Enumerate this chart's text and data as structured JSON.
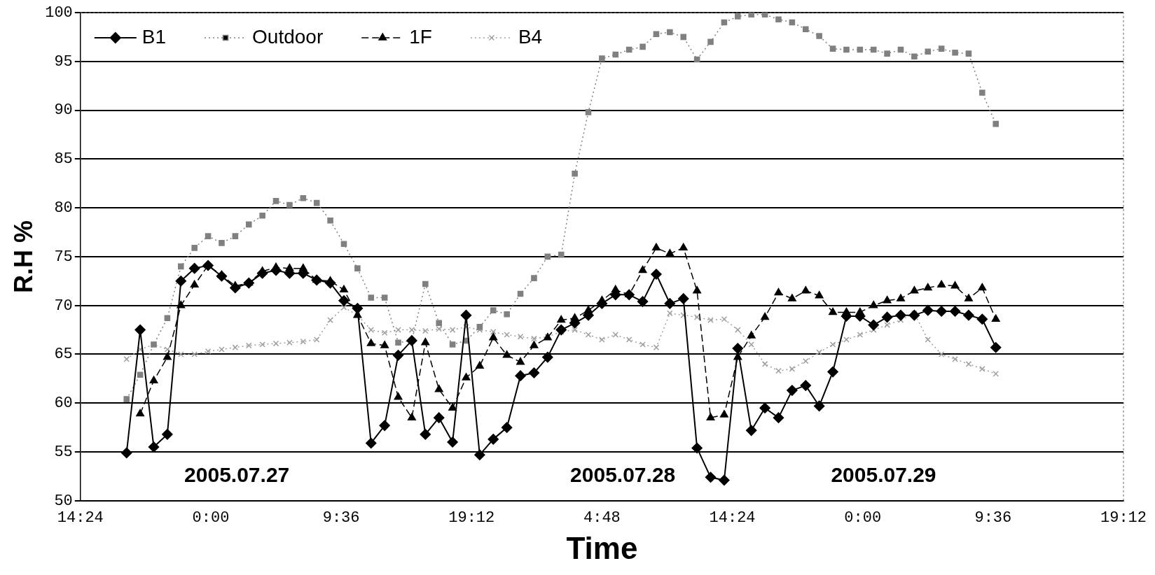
{
  "chart_data": {
    "type": "line",
    "xlabel": "Time",
    "ylabel": "R.H %",
    "x": [
      "2005-07-26T17:48",
      "2005-07-26T18:48",
      "2005-07-26T19:48",
      "2005-07-26T20:48",
      "2005-07-26T21:48",
      "2005-07-26T22:48",
      "2005-07-26T23:48",
      "2005-07-27T00:48",
      "2005-07-27T01:48",
      "2005-07-27T02:48",
      "2005-07-27T03:48",
      "2005-07-27T04:48",
      "2005-07-27T05:48",
      "2005-07-27T06:48",
      "2005-07-27T07:48",
      "2005-07-27T08:48",
      "2005-07-27T09:48",
      "2005-07-27T10:48",
      "2005-07-27T11:48",
      "2005-07-27T12:48",
      "2005-07-27T13:48",
      "2005-07-27T14:48",
      "2005-07-27T15:48",
      "2005-07-27T16:48",
      "2005-07-27T17:48",
      "2005-07-27T18:48",
      "2005-07-27T19:48",
      "2005-07-27T20:48",
      "2005-07-27T21:48",
      "2005-07-27T22:48",
      "2005-07-27T23:48",
      "2005-07-28T00:48",
      "2005-07-28T01:48",
      "2005-07-28T02:48",
      "2005-07-28T03:48",
      "2005-07-28T04:48",
      "2005-07-28T05:48",
      "2005-07-28T06:48",
      "2005-07-28T07:48",
      "2005-07-28T08:48",
      "2005-07-28T09:48",
      "2005-07-28T10:48",
      "2005-07-28T11:48",
      "2005-07-28T12:48",
      "2005-07-28T13:48",
      "2005-07-28T14:48",
      "2005-07-28T15:48",
      "2005-07-28T16:48",
      "2005-07-28T17:48",
      "2005-07-28T18:48",
      "2005-07-28T19:48",
      "2005-07-28T20:48",
      "2005-07-28T21:48",
      "2005-07-28T22:48",
      "2005-07-28T23:48",
      "2005-07-29T00:48",
      "2005-07-29T01:48",
      "2005-07-29T02:48",
      "2005-07-29T03:48",
      "2005-07-29T04:48",
      "2005-07-29T05:48",
      "2005-07-29T06:48",
      "2005-07-29T07:48",
      "2005-07-29T08:48",
      "2005-07-29T09:48"
    ],
    "series": [
      {
        "name": "B1",
        "color": "#000000",
        "marker": "diamond",
        "line_style": "solid",
        "values": [
          54.9,
          67.5,
          55.5,
          56.8,
          72.5,
          73.8,
          74.1,
          73,
          71.8,
          72.3,
          73.3,
          73.6,
          73.3,
          73.3,
          72.6,
          72.3,
          70.5,
          69.7,
          55.9,
          57.7,
          64.9,
          66.4,
          56.8,
          58.5,
          56,
          69,
          54.7,
          56.3,
          57.5,
          62.8,
          63.1,
          64.7,
          67.5,
          68.2,
          69,
          70.2,
          71.1,
          71.1,
          70.4,
          73.2,
          70.2,
          70.7,
          55.4,
          52.4,
          52.1,
          65.6,
          57.2,
          59.5,
          58.5,
          61.3,
          61.8,
          59.7,
          63.2,
          68.9,
          68.9,
          68,
          68.8,
          69,
          69,
          69.5,
          69.4,
          69.4,
          69,
          68.6,
          65.7
        ]
      },
      {
        "name": "Outdoor",
        "color": "#808080",
        "marker": "square",
        "line_style": "dotted",
        "values": [
          60.4,
          62.9,
          66,
          68.7,
          74,
          75.9,
          77.1,
          76.4,
          77.1,
          78.3,
          79.2,
          80.7,
          80.3,
          81,
          80.5,
          78.7,
          76.3,
          73.8,
          70.8,
          70.8,
          66.2,
          66.4,
          72.2,
          68.2,
          66,
          66.4,
          67.8,
          69.5,
          69.1,
          71.2,
          72.8,
          75,
          75.2,
          83.5,
          89.8,
          95.3,
          95.7,
          96.2,
          96.5,
          97.8,
          98,
          97.5,
          95.2,
          97,
          99,
          99.6,
          99.8,
          99.8,
          99.3,
          99,
          98.3,
          97.6,
          96.3,
          96.2,
          96.2,
          96.2,
          95.8,
          96.2,
          95.5,
          96,
          96.3,
          95.9,
          95.8,
          91.8,
          88.6
        ]
      },
      {
        "name": "1F",
        "color": "#000000",
        "marker": "triangle",
        "line_style": "dashed",
        "values": [
          null,
          58.9,
          62.3,
          64.7,
          70,
          72.1,
          74.1,
          73.1,
          72,
          72.3,
          73.5,
          73.9,
          73.8,
          73.8,
          72.6,
          72.5,
          71.6,
          69,
          66.1,
          65.9,
          60.6,
          58.5,
          66.2,
          61.4,
          59.5,
          62.6,
          63.8,
          66.7,
          64.9,
          64.2,
          65.9,
          66.7,
          68.5,
          68.7,
          69.5,
          70.5,
          71.6,
          71.1,
          73.6,
          75.9,
          75.3,
          75.9,
          71.5,
          58.5,
          58.8,
          64.7,
          66.9,
          68.8,
          71.3,
          70.7,
          71.5,
          71,
          69.3,
          69.3,
          69.3,
          70,
          70.5,
          70.7,
          71.5,
          71.8,
          72.1,
          72,
          70.7,
          71.8,
          68.6
        ]
      },
      {
        "name": "B4",
        "color": "#a0a0a0",
        "marker": "cross",
        "line_style": "dotted",
        "values": [
          64.5,
          65.5,
          66,
          65.5,
          65,
          65,
          65.3,
          65.5,
          65.7,
          65.9,
          66,
          66.1,
          66.2,
          66.3,
          66.5,
          68.5,
          69.8,
          69,
          67.5,
          67.2,
          67.5,
          67.5,
          67.4,
          67.6,
          67.5,
          67.8,
          67.5,
          67.3,
          67,
          66.8,
          66.6,
          66.8,
          67.3,
          67.5,
          67,
          66.5,
          67,
          66.5,
          66,
          65.7,
          69.2,
          69,
          68.8,
          68.5,
          68.6,
          67.5,
          66,
          64,
          63.3,
          63.5,
          64.3,
          65.2,
          66,
          66.5,
          67,
          67.5,
          68,
          68.5,
          69.2,
          66.5,
          65,
          64.5,
          64,
          63.5,
          63
        ]
      }
    ],
    "xlim": [
      "2005-07-26T14:24",
      "2005-07-29T19:12"
    ],
    "xticks": [
      {
        "value": "2005-07-26T14:24",
        "label": "14:24"
      },
      {
        "value": "2005-07-27T00:00",
        "label": "0:00"
      },
      {
        "value": "2005-07-27T09:36",
        "label": "9:36"
      },
      {
        "value": "2005-07-27T19:12",
        "label": "19:12"
      },
      {
        "value": "2005-07-28T04:48",
        "label": "4:48"
      },
      {
        "value": "2005-07-28T14:24",
        "label": "14:24"
      },
      {
        "value": "2005-07-29T00:00",
        "label": "0:00"
      },
      {
        "value": "2005-07-29T09:36",
        "label": "9:36"
      },
      {
        "value": "2005-07-29T19:12",
        "label": "19:12"
      }
    ],
    "ylim": [
      50,
      100
    ],
    "yticks": [
      50,
      55,
      60,
      65,
      70,
      75,
      80,
      85,
      90,
      95,
      100
    ],
    "grid": "y",
    "legend": "top left",
    "annotations": [
      "2005.07.27",
      "2005.07.28",
      "2005.07.29"
    ]
  }
}
